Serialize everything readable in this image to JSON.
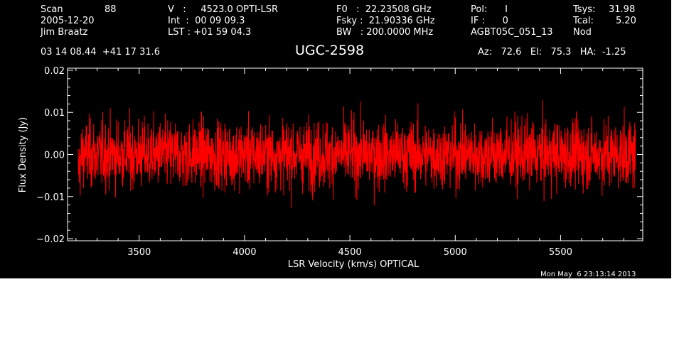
{
  "header": {
    "scan_label": "Scan",
    "scan_value": "88",
    "date": "2005-12-20",
    "observer": "Jim Braatz",
    "coord": "03 14 08.44  +41 17 31.6",
    "v_line": "V   :     4523.0 OPTI-LSR",
    "int_line": "Int  :  00 09 09.3",
    "lst_line": "LST : +01 59 04.3",
    "f0_line": "F0   :  22.23508 GHz",
    "fsky_line": "Fsky :  21.90336 GHz",
    "bw_line": "BW   : 200.0000 MHz",
    "pol_line": "Pol:      I",
    "if_line": "IF :      0",
    "project": "AGBT05C_051_13",
    "tsys_label": "Tsys:",
    "tsys_value": "31.98",
    "tcal_label": "Tcal:",
    "tcal_value": "5.20",
    "mode": "Nod",
    "az_el_ha": "Az:   72.6   El:   75.3   HA:  -1.25"
  },
  "timestamp": "Mon May  6 23:13:14 2013",
  "chart_data": {
    "type": "line",
    "title": "UGC-2598",
    "xlabel": "LSR Velocity (km/s) OPTICAL",
    "ylabel": "Flux Density (Jy)",
    "xlim": [
      3160,
      5890
    ],
    "ylim": [
      -0.0205,
      0.0205
    ],
    "x_range": [
      3210,
      5855
    ],
    "noise_sigma_jy": 0.004,
    "x_ticks": [
      3500,
      4000,
      4500,
      5000,
      5500
    ],
    "x_tick_labels": [
      "3500",
      "4000",
      "4500",
      "5000",
      "5500"
    ],
    "y_ticks": [
      -0.02,
      -0.01,
      0.0,
      0.01,
      0.02
    ],
    "y_tick_labels": [
      "−0.02",
      "−0.01",
      "0.00",
      "0.01",
      "0.02"
    ],
    "series_color": "#ff0000",
    "grid": false
  }
}
